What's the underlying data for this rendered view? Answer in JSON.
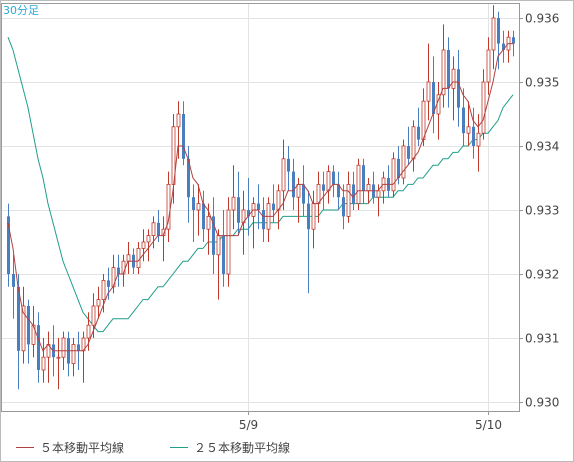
{
  "timeframe_label": "30分足",
  "colors": {
    "up": "#c0392b",
    "down": "#4a7fbf",
    "ma5": "#b04040",
    "ma25": "#1f9e89",
    "grid": "#e3e3e3",
    "frame": "#bbbbbb",
    "axis_text": "#444444"
  },
  "chart_data": {
    "type": "candlestick",
    "title": "",
    "ylim": [
      0.93,
      0.936
    ],
    "y_ticks": [
      "0.930",
      "0.931",
      "0.932",
      "0.933",
      "0.934",
      "0.935",
      "0.936"
    ],
    "x_ticks": [
      {
        "label": "5/9",
        "index": 48
      },
      {
        "label": "5/10",
        "index": 96
      }
    ],
    "legend": [
      {
        "key": "ma5",
        "label": "５本移動平均線"
      },
      {
        "key": "ma25",
        "label": "２５本移動平均線"
      }
    ],
    "ohlc": [
      [
        0.9329,
        0.9331,
        0.9318,
        0.932
      ],
      [
        0.932,
        0.9323,
        0.9313,
        0.9318
      ],
      [
        0.9318,
        0.932,
        0.9302,
        0.9308
      ],
      [
        0.9308,
        0.9318,
        0.9306,
        0.9315
      ],
      [
        0.9315,
        0.9316,
        0.9306,
        0.9309
      ],
      [
        0.9309,
        0.9315,
        0.9307,
        0.9312
      ],
      [
        0.9312,
        0.9314,
        0.9303,
        0.9305
      ],
      [
        0.9305,
        0.931,
        0.9303,
        0.9307
      ],
      [
        0.9307,
        0.9311,
        0.9303,
        0.9309
      ],
      [
        0.9309,
        0.9312,
        0.9304,
        0.9307
      ],
      [
        0.9307,
        0.931,
        0.9302,
        0.9307
      ],
      [
        0.9307,
        0.9311,
        0.9305,
        0.931
      ],
      [
        0.931,
        0.9311,
        0.9304,
        0.9306
      ],
      [
        0.9306,
        0.931,
        0.9304,
        0.9309
      ],
      [
        0.9309,
        0.9311,
        0.9305,
        0.9308
      ],
      [
        0.9308,
        0.9311,
        0.9303,
        0.931
      ],
      [
        0.931,
        0.9314,
        0.9308,
        0.9312
      ],
      [
        0.9312,
        0.9317,
        0.931,
        0.9315
      ],
      [
        0.9315,
        0.9318,
        0.9313,
        0.9316
      ],
      [
        0.9316,
        0.932,
        0.9314,
        0.9319
      ],
      [
        0.9319,
        0.9321,
        0.9316,
        0.9318
      ],
      [
        0.9318,
        0.9323,
        0.9317,
        0.9321
      ],
      [
        0.9321,
        0.9323,
        0.9318,
        0.932
      ],
      [
        0.932,
        0.9323,
        0.9318,
        0.9322
      ],
      [
        0.9322,
        0.9325,
        0.932,
        0.9323
      ],
      [
        0.9323,
        0.9324,
        0.932,
        0.9321
      ],
      [
        0.9321,
        0.9325,
        0.932,
        0.9324
      ],
      [
        0.9324,
        0.9327,
        0.9322,
        0.9325
      ],
      [
        0.9325,
        0.9327,
        0.9322,
        0.9326
      ],
      [
        0.9326,
        0.9329,
        0.9324,
        0.9328
      ],
      [
        0.9328,
        0.933,
        0.9325,
        0.9326
      ],
      [
        0.9326,
        0.9329,
        0.9322,
        0.9327
      ],
      [
        0.9327,
        0.9336,
        0.9325,
        0.9334
      ],
      [
        0.9334,
        0.9345,
        0.9331,
        0.9343
      ],
      [
        0.9343,
        0.9347,
        0.9338,
        0.9345
      ],
      [
        0.9345,
        0.9347,
        0.9337,
        0.9338
      ],
      [
        0.9338,
        0.934,
        0.9328,
        0.9332
      ],
      [
        0.9332,
        0.9334,
        0.9325,
        0.933
      ],
      [
        0.933,
        0.9334,
        0.9326,
        0.9331
      ],
      [
        0.9331,
        0.9333,
        0.9325,
        0.9327
      ],
      [
        0.9327,
        0.9331,
        0.9323,
        0.9329
      ],
      [
        0.9329,
        0.9332,
        0.932,
        0.9323
      ],
      [
        0.9323,
        0.9327,
        0.9316,
        0.9326
      ],
      [
        0.9326,
        0.933,
        0.9318,
        0.932
      ],
      [
        0.932,
        0.9332,
        0.9318,
        0.933
      ],
      [
        0.933,
        0.9337,
        0.9327,
        0.9332
      ],
      [
        0.9332,
        0.9336,
        0.9326,
        0.9328
      ],
      [
        0.9328,
        0.9333,
        0.9323,
        0.933
      ],
      [
        0.933,
        0.9335,
        0.9326,
        0.9329
      ],
      [
        0.9329,
        0.9332,
        0.9324,
        0.9331
      ],
      [
        0.9331,
        0.9334,
        0.9327,
        0.933
      ],
      [
        0.933,
        0.9332,
        0.9325,
        0.9327
      ],
      [
        0.9327,
        0.9332,
        0.9325,
        0.9331
      ],
      [
        0.9331,
        0.9334,
        0.9328,
        0.933
      ],
      [
        0.933,
        0.9334,
        0.9327,
        0.9333
      ],
      [
        0.9333,
        0.9341,
        0.933,
        0.9338
      ],
      [
        0.9338,
        0.934,
        0.9333,
        0.9336
      ],
      [
        0.9336,
        0.9338,
        0.933,
        0.9332
      ],
      [
        0.9332,
        0.9335,
        0.9328,
        0.9334
      ],
      [
        0.9334,
        0.9337,
        0.9329,
        0.9331
      ],
      [
        0.9331,
        0.9333,
        0.9317,
        0.9327
      ],
      [
        0.9327,
        0.9333,
        0.9324,
        0.9331
      ],
      [
        0.9331,
        0.9336,
        0.9328,
        0.9334
      ],
      [
        0.9334,
        0.9336,
        0.933,
        0.9333
      ],
      [
        0.9333,
        0.9337,
        0.9331,
        0.9336
      ],
      [
        0.9336,
        0.9337,
        0.9332,
        0.9334
      ],
      [
        0.9334,
        0.9336,
        0.933,
        0.9332
      ],
      [
        0.9332,
        0.9334,
        0.9327,
        0.9329
      ],
      [
        0.9329,
        0.9336,
        0.9328,
        0.9334
      ],
      [
        0.9334,
        0.9336,
        0.933,
        0.9331
      ],
      [
        0.9331,
        0.9338,
        0.933,
        0.9337
      ],
      [
        0.9337,
        0.9338,
        0.9331,
        0.9333
      ],
      [
        0.9333,
        0.9335,
        0.9331,
        0.9334
      ],
      [
        0.9334,
        0.9336,
        0.9331,
        0.9332
      ],
      [
        0.9332,
        0.9334,
        0.9329,
        0.9333
      ],
      [
        0.9333,
        0.9336,
        0.9331,
        0.9335
      ],
      [
        0.9335,
        0.9337,
        0.9332,
        0.9333
      ],
      [
        0.9333,
        0.9339,
        0.9332,
        0.9338
      ],
      [
        0.9338,
        0.934,
        0.9334,
        0.9335
      ],
      [
        0.9335,
        0.9341,
        0.9334,
        0.934
      ],
      [
        0.934,
        0.9343,
        0.9337,
        0.9338
      ],
      [
        0.9338,
        0.9344,
        0.9336,
        0.9343
      ],
      [
        0.9343,
        0.9346,
        0.934,
        0.9341
      ],
      [
        0.9341,
        0.9349,
        0.934,
        0.9347
      ],
      [
        0.9347,
        0.9356,
        0.9344,
        0.935
      ],
      [
        0.935,
        0.9354,
        0.9342,
        0.9345
      ],
      [
        0.9345,
        0.935,
        0.9341,
        0.9348
      ],
      [
        0.9348,
        0.9359,
        0.9346,
        0.9355
      ],
      [
        0.9355,
        0.9357,
        0.9346,
        0.9349
      ],
      [
        0.9349,
        0.9354,
        0.9344,
        0.9352
      ],
      [
        0.9352,
        0.9355,
        0.9343,
        0.9346
      ],
      [
        0.9346,
        0.9349,
        0.934,
        0.9342
      ],
      [
        0.9342,
        0.9347,
        0.934,
        0.9343
      ],
      [
        0.9343,
        0.9346,
        0.9338,
        0.934
      ],
      [
        0.934,
        0.9345,
        0.9336,
        0.9342
      ],
      [
        0.9342,
        0.9352,
        0.9341,
        0.935
      ],
      [
        0.935,
        0.9357,
        0.9348,
        0.9355
      ],
      [
        0.9355,
        0.9362,
        0.9352,
        0.936
      ],
      [
        0.936,
        0.9361,
        0.9352,
        0.9356
      ],
      [
        0.9356,
        0.9358,
        0.9353,
        0.9355
      ],
      [
        0.9355,
        0.9358,
        0.9353,
        0.9357
      ],
      [
        0.9357,
        0.9358,
        0.9354,
        0.9356
      ]
    ],
    "series": [
      {
        "name": "５本移動平均線",
        "key": "ma5",
        "values": [
          0.9328,
          0.9324,
          0.9318,
          0.9314,
          0.9313,
          0.9312,
          0.931,
          0.9308,
          0.9309,
          0.9308,
          0.9308,
          0.9308,
          0.9308,
          0.9308,
          0.9308,
          0.9308,
          0.9309,
          0.9311,
          0.9313,
          0.9315,
          0.9317,
          0.9318,
          0.932,
          0.932,
          0.9322,
          0.9322,
          0.9322,
          0.9323,
          0.9324,
          0.9325,
          0.9326,
          0.9326,
          0.9328,
          0.9333,
          0.934,
          0.934,
          0.9338,
          0.9335,
          0.9334,
          0.9331,
          0.933,
          0.9328,
          0.9326,
          0.9326,
          0.9326,
          0.9326,
          0.9326,
          0.9328,
          0.9329,
          0.933,
          0.933,
          0.9329,
          0.9329,
          0.9329,
          0.933,
          0.9331,
          0.9333,
          0.9333,
          0.9334,
          0.9334,
          0.9333,
          0.9331,
          0.9331,
          0.9332,
          0.9333,
          0.9334,
          0.9334,
          0.9333,
          0.9333,
          0.9332,
          0.9333,
          0.9333,
          0.9333,
          0.9333,
          0.9333,
          0.9334,
          0.9334,
          0.9334,
          0.9335,
          0.9336,
          0.9337,
          0.9338,
          0.9339,
          0.9341,
          0.9343,
          0.9345,
          0.9347,
          0.9349,
          0.9349,
          0.935,
          0.935,
          0.9348,
          0.9347,
          0.9344,
          0.9343,
          0.9344,
          0.9347,
          0.935,
          0.9354,
          0.9355,
          0.9356,
          0.9356
        ]
      },
      {
        "name": "２５本移動平均線",
        "key": "ma25",
        "values": [
          0.9357,
          0.9355,
          0.9352,
          0.9349,
          0.9346,
          0.9342,
          0.9338,
          0.9335,
          0.9331,
          0.9328,
          0.9325,
          0.9322,
          0.932,
          0.9318,
          0.9316,
          0.9314,
          0.9313,
          0.9312,
          0.9311,
          0.9311,
          0.9312,
          0.9313,
          0.9313,
          0.9313,
          0.9313,
          0.9314,
          0.9315,
          0.9316,
          0.9316,
          0.9317,
          0.9318,
          0.9318,
          0.9319,
          0.932,
          0.9321,
          0.9322,
          0.9322,
          0.9323,
          0.9324,
          0.9324,
          0.9325,
          0.9325,
          0.9325,
          0.9326,
          0.9326,
          0.9326,
          0.9327,
          0.9327,
          0.9327,
          0.9328,
          0.9328,
          0.9328,
          0.9328,
          0.9328,
          0.9328,
          0.9329,
          0.9329,
          0.9329,
          0.9329,
          0.9329,
          0.9329,
          0.9329,
          0.9329,
          0.933,
          0.933,
          0.933,
          0.933,
          0.9331,
          0.9331,
          0.9331,
          0.9331,
          0.9331,
          0.9331,
          0.9332,
          0.9332,
          0.9332,
          0.9332,
          0.9332,
          0.9333,
          0.9333,
          0.9334,
          0.9334,
          0.9335,
          0.9335,
          0.9336,
          0.9337,
          0.9337,
          0.9338,
          0.9338,
          0.9339,
          0.9339,
          0.934,
          0.934,
          0.9341,
          0.9341,
          0.9342,
          0.9342,
          0.9343,
          0.9344,
          0.9346,
          0.9347,
          0.9348
        ]
      }
    ],
    "grid": true,
    "legend_placement": "bottom-left"
  }
}
